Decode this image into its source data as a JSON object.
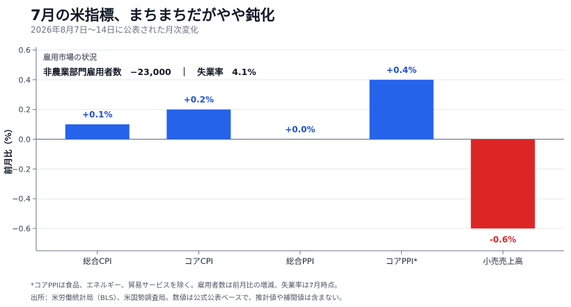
{
  "header": {
    "title": "7月の米指標、まちまちだがやや鈍化",
    "subtitle": "2026年8月7日〜14日に公表された月次変化"
  },
  "annotation": {
    "heading": "雇用市場の状況",
    "line": "非農業部門雇用者数　−23,000　｜　失業率　4.1%"
  },
  "footnotes": {
    "note": "*コアPPIは食品、エネルギー、貿易サービスを除く。雇用者数は前月比の増減、失業率は7月時点。",
    "source": "出所：米労働統計局（BLS）、米国勢調査局。数値は公式公表ベースで、推計値や補間値は含まない。"
  },
  "colors": {
    "positive": "#2563eb",
    "negative": "#dc2626",
    "positive_label": "#1d4ed8",
    "negative_label": "#dc2626",
    "grid": "#e5e7eb",
    "axis": "#6b7280",
    "zero_line": "#64748b"
  },
  "chart_data": {
    "type": "bar",
    "categories": [
      "総合CPI",
      "コアCPI",
      "総合PPI",
      "コアPPI*",
      "小売売上高"
    ],
    "values": [
      0.1,
      0.2,
      0.0,
      0.4,
      -0.6
    ],
    "data_labels": [
      "+0.1%",
      "+0.2%",
      "+0.0%",
      "+0.4%",
      "-0.6%"
    ],
    "ylabel": "前月比（%）",
    "ylim": [
      -0.75,
      0.6
    ],
    "yticks": [
      0.6,
      0.4,
      0.2,
      0.0,
      -0.2,
      -0.4,
      -0.6
    ],
    "ytick_labels": [
      "0.6",
      "0.4",
      "0.2",
      "0.0",
      "−0.2",
      "−0.4",
      "−0.6"
    ],
    "grid": true
  }
}
